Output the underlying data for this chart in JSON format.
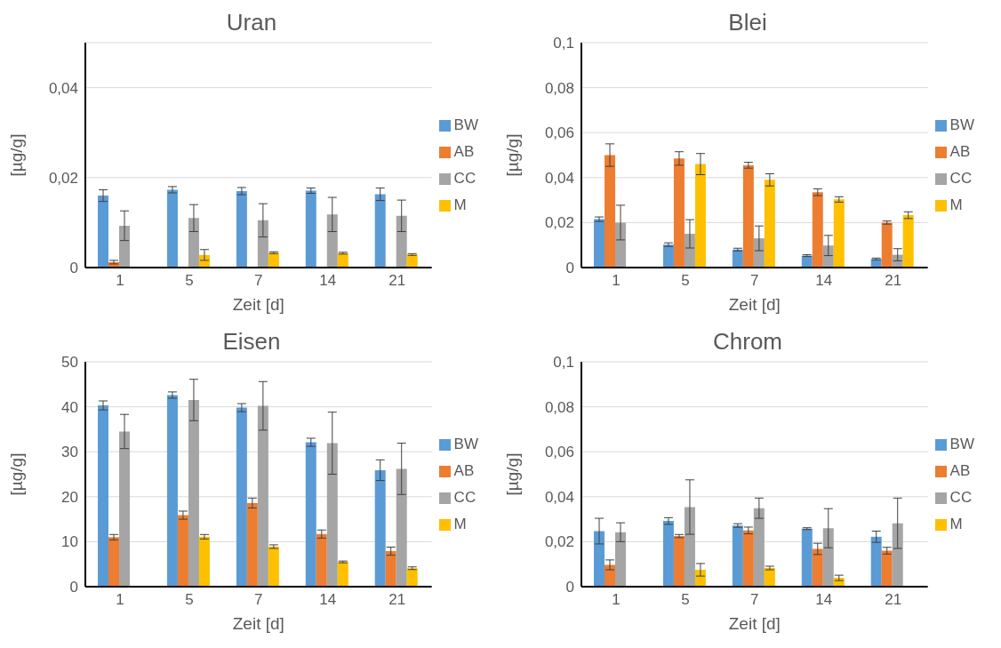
{
  "chart_data": [
    {
      "type": "bar",
      "title": "Uran",
      "xlabel": "Zeit [d]",
      "ylabel": "[µg/g]",
      "categories": [
        "1",
        "5",
        "7",
        "14",
        "21"
      ],
      "ylim": [
        0,
        0.05
      ],
      "yticks": [
        {
          "value": 0,
          "label": "0"
        },
        {
          "value": 0.02,
          "label": "0,02"
        },
        {
          "value": 0.04,
          "label": "0,04"
        }
      ],
      "grid": "y",
      "legend": "right",
      "series": [
        {
          "name": "BW",
          "color": "#5b9bd5",
          "values": [
            0.016,
            0.0173,
            0.017,
            0.0171,
            0.0163
          ],
          "errors": [
            0.0013,
            0.0007,
            0.0008,
            0.0006,
            0.0014
          ]
        },
        {
          "name": "AB",
          "color": "#ed7d31",
          "values": [
            0.0012,
            null,
            null,
            null,
            null
          ],
          "errors": [
            0.0004,
            null,
            null,
            null,
            null
          ]
        },
        {
          "name": "CC",
          "color": "#a5a5a5",
          "values": [
            0.0093,
            0.011,
            0.0105,
            0.0118,
            0.0115
          ],
          "errors": [
            0.0033,
            0.003,
            0.0037,
            0.0038,
            0.0035
          ]
        },
        {
          "name": "M",
          "color": "#ffc000",
          "values": [
            null,
            0.0028,
            0.0033,
            0.0032,
            0.0029
          ],
          "errors": [
            null,
            0.0012,
            0.0002,
            0.0002,
            0.0002
          ]
        }
      ]
    },
    {
      "type": "bar",
      "title": "Blei",
      "xlabel": "Zeit [d]",
      "ylabel": "[µg/g]",
      "categories": [
        "1",
        "5",
        "7",
        "14",
        "21"
      ],
      "ylim": [
        0,
        0.1
      ],
      "yticks": [
        {
          "value": 0,
          "label": "0"
        },
        {
          "value": 0.02,
          "label": "0,02"
        },
        {
          "value": 0.04,
          "label": "0,04"
        },
        {
          "value": 0.06,
          "label": "0,06"
        },
        {
          "value": 0.08,
          "label": "0,08"
        },
        {
          "value": 0.1,
          "label": "0,1"
        }
      ],
      "grid": "y",
      "legend": "right",
      "series": [
        {
          "name": "BW",
          "color": "#5b9bd5",
          "values": [
            0.0215,
            0.0102,
            0.008,
            0.0053,
            0.0038
          ],
          "errors": [
            0.001,
            0.0008,
            0.0006,
            0.0004,
            0.0004
          ]
        },
        {
          "name": "AB",
          "color": "#ed7d31",
          "values": [
            0.05,
            0.0485,
            0.0455,
            0.0335,
            0.02
          ],
          "errors": [
            0.005,
            0.003,
            0.0013,
            0.0015,
            0.0007
          ]
        },
        {
          "name": "CC",
          "color": "#a5a5a5",
          "values": [
            0.02,
            0.015,
            0.013,
            0.0098,
            0.0057
          ],
          "errors": [
            0.0077,
            0.0063,
            0.0055,
            0.0045,
            0.0027
          ]
        },
        {
          "name": "M",
          "color": "#ffc000",
          "values": [
            null,
            0.046,
            0.039,
            0.0303,
            0.0233
          ],
          "errors": [
            null,
            0.0047,
            0.0027,
            0.0012,
            0.0015
          ]
        }
      ]
    },
    {
      "type": "bar",
      "title": "Eisen",
      "xlabel": "Zeit [d]",
      "ylabel": "[µg/g]",
      "categories": [
        "1",
        "5",
        "7",
        "14",
        "21"
      ],
      "ylim": [
        0,
        50
      ],
      "yticks": [
        0,
        10,
        20,
        30,
        40,
        50
      ],
      "grid": "y",
      "legend": "right",
      "series": [
        {
          "name": "BW",
          "color": "#5b9bd5",
          "values": [
            40.3,
            42.6,
            39.8,
            32.1,
            25.9
          ],
          "errors": [
            1,
            0.7,
            0.9,
            0.9,
            2.3
          ]
        },
        {
          "name": "AB",
          "color": "#ed7d31",
          "values": [
            11,
            15.9,
            18.6,
            11.7,
            7.9
          ],
          "errors": [
            0.6,
            0.9,
            1.1,
            0.9,
            0.9
          ]
        },
        {
          "name": "CC",
          "color": "#a5a5a5",
          "values": [
            34.5,
            41.5,
            40.2,
            31.9,
            26.2
          ],
          "errors": [
            3.8,
            4.6,
            5.4,
            6.9,
            5.7
          ]
        },
        {
          "name": "M",
          "color": "#ffc000",
          "values": [
            null,
            11.1,
            8.9,
            5.5,
            4.1
          ],
          "errors": [
            null,
            0.5,
            0.4,
            0.2,
            0.3
          ]
        }
      ]
    },
    {
      "type": "bar",
      "title": "Chrom",
      "xlabel": "Zeit [d]",
      "ylabel": "[µg/g]",
      "categories": [
        "1",
        "5",
        "7",
        "14",
        "21"
      ],
      "ylim": [
        0,
        0.1
      ],
      "yticks": [
        {
          "value": 0,
          "label": "0"
        },
        {
          "value": 0.02,
          "label": "0,02"
        },
        {
          "value": 0.04,
          "label": "0,04"
        },
        {
          "value": 0.06,
          "label": "0,06"
        },
        {
          "value": 0.08,
          "label": "0,08"
        },
        {
          "value": 0.1,
          "label": "0,1"
        }
      ],
      "grid": "y",
      "legend": "right",
      "series": [
        {
          "name": "BW",
          "color": "#5b9bd5",
          "values": [
            0.0247,
            0.0292,
            0.0272,
            0.0258,
            0.0222
          ],
          "errors": [
            0.0057,
            0.0015,
            0.0008,
            0.0004,
            0.0025
          ]
        },
        {
          "name": "AB",
          "color": "#ed7d31",
          "values": [
            0.0097,
            0.0225,
            0.025,
            0.0168,
            0.016
          ],
          "errors": [
            0.0022,
            0.0007,
            0.0015,
            0.0025,
            0.0015
          ]
        },
        {
          "name": "CC",
          "color": "#a5a5a5",
          "values": [
            0.0242,
            0.0354,
            0.0349,
            0.026,
            0.0282
          ],
          "errors": [
            0.0042,
            0.0121,
            0.0045,
            0.0087,
            0.0112
          ]
        },
        {
          "name": "M",
          "color": "#ffc000",
          "values": [
            null,
            0.0075,
            0.0083,
            0.0039,
            null
          ],
          "errors": [
            null,
            0.0028,
            0.0008,
            0.0012,
            null
          ]
        }
      ]
    }
  ]
}
